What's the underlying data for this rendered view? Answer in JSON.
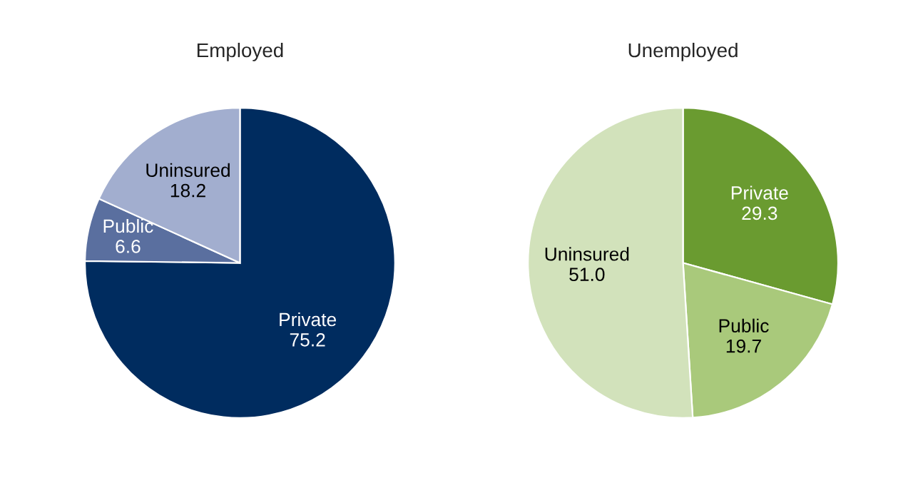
{
  "chart_data": [
    {
      "type": "pie",
      "title": "Employed",
      "categories": [
        "Private",
        "Public",
        "Uninsured"
      ],
      "values": [
        75.2,
        6.6,
        18.2
      ],
      "value_labels": [
        "75.2",
        "6.6",
        "18.2"
      ],
      "colors": [
        "#002c5f",
        "#5a6f9f",
        "#a2aecf"
      ]
    },
    {
      "type": "pie",
      "title": "Unemployed",
      "categories": [
        "Private",
        "Public",
        "Uninsured"
      ],
      "values": [
        29.3,
        19.7,
        51.0
      ],
      "value_labels": [
        "29.3",
        "19.7",
        "51.0"
      ],
      "colors": [
        "#6a9b30",
        "#a9c97b",
        "#d2e2bb"
      ]
    }
  ]
}
